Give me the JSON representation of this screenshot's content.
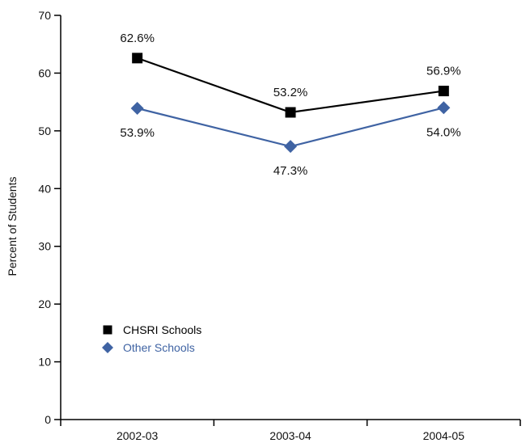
{
  "chart_data": {
    "type": "line",
    "title": "",
    "xlabel": "",
    "ylabel": "Percent of Students",
    "categories": [
      "2002-03",
      "2003-04",
      "2004-05"
    ],
    "ylim": [
      0,
      70
    ],
    "yticks": [
      0,
      10,
      20,
      30,
      40,
      50,
      60,
      70
    ],
    "ytick_labels": [
      "0",
      "10",
      "20",
      "30",
      "40",
      "50",
      "60",
      "70"
    ],
    "grid": false,
    "legend_position": "lower-left",
    "series": [
      {
        "name": "CHSRI Schools",
        "values": [
          62.6,
          53.2,
          56.9
        ],
        "labels": [
          "62.6%",
          "53.2%",
          "56.9%"
        ],
        "label_position": "above",
        "marker": "square",
        "color": "#000000",
        "legend_text_color": "#000000"
      },
      {
        "name": "Other Schools",
        "values": [
          53.9,
          47.3,
          54.0
        ],
        "labels": [
          "53.9%",
          "47.3%",
          "54.0%"
        ],
        "label_position": "below",
        "marker": "diamond",
        "color": "#3f63a3",
        "legend_text_color": "#3f63a3"
      }
    ]
  }
}
